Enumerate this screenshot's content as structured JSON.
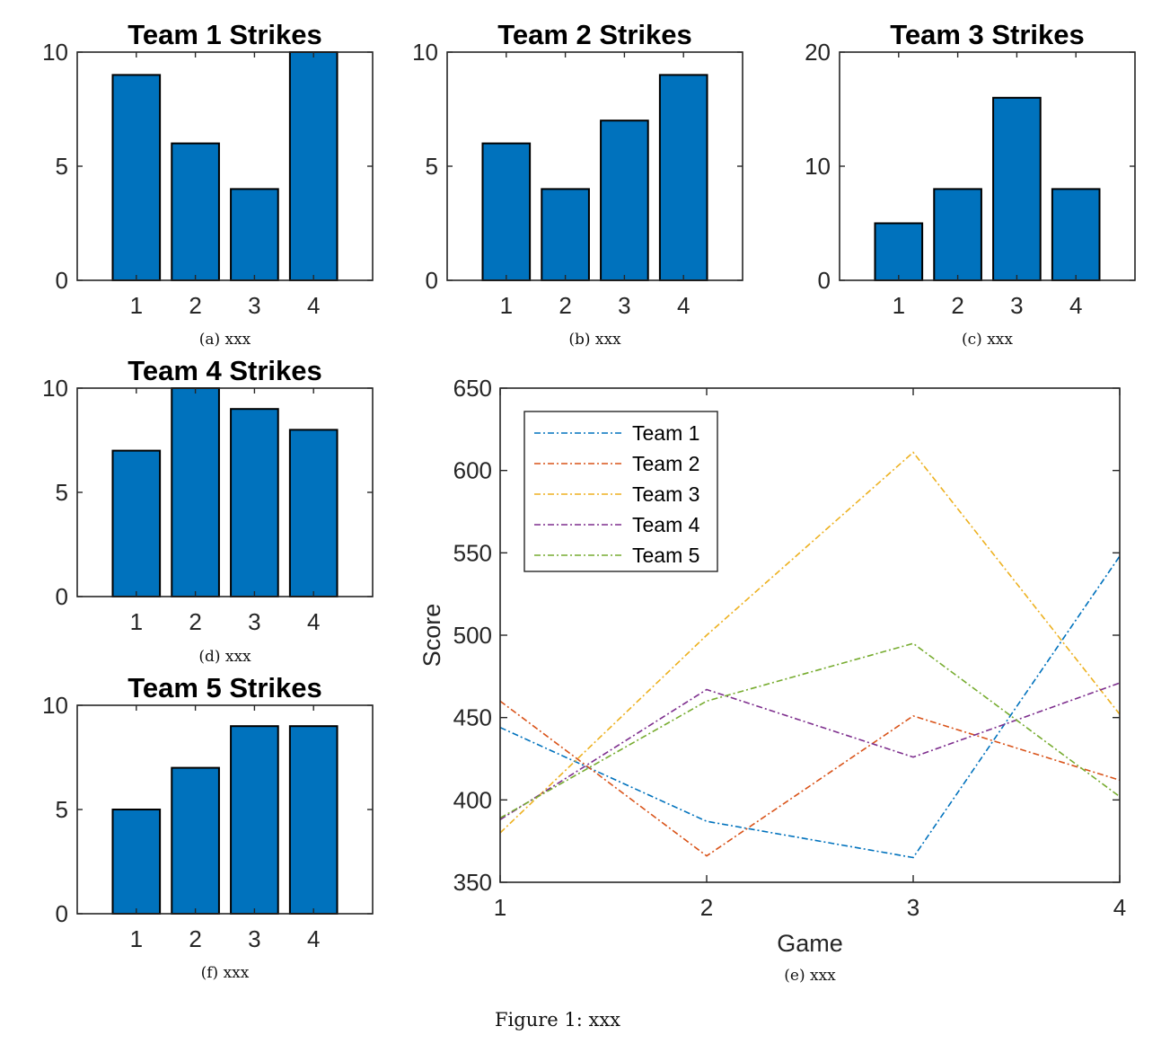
{
  "figure_caption": "Figure 1: xxx",
  "colors": {
    "bar_fill": "#0072BD",
    "bar_edge": "#000000",
    "axes": "#262626"
  },
  "chart_data": [
    {
      "id": "a",
      "type": "bar",
      "title": "Team 1 Strikes",
      "caption": "(a) xxx",
      "categories": [
        "1",
        "2",
        "3",
        "4"
      ],
      "values": [
        9,
        6,
        4,
        10
      ],
      "ylim": [
        0,
        10
      ],
      "yticks": [
        0,
        5,
        10
      ],
      "grid": false
    },
    {
      "id": "b",
      "type": "bar",
      "title": "Team 2 Strikes",
      "caption": "(b) xxx",
      "categories": [
        "1",
        "2",
        "3",
        "4"
      ],
      "values": [
        6,
        4,
        7,
        9
      ],
      "ylim": [
        0,
        10
      ],
      "yticks": [
        0,
        5,
        10
      ],
      "grid": false
    },
    {
      "id": "c",
      "type": "bar",
      "title": "Team 3 Strikes",
      "caption": "(c) xxx",
      "categories": [
        "1",
        "2",
        "3",
        "4"
      ],
      "values": [
        5,
        8,
        16,
        8
      ],
      "ylim": [
        0,
        20
      ],
      "yticks": [
        0,
        10,
        20
      ],
      "grid": false
    },
    {
      "id": "d",
      "type": "bar",
      "title": "Team 4 Strikes",
      "caption": "(d) xxx",
      "categories": [
        "1",
        "2",
        "3",
        "4"
      ],
      "values": [
        7,
        10,
        9,
        8
      ],
      "ylim": [
        0,
        10
      ],
      "yticks": [
        0,
        5,
        10
      ],
      "grid": false
    },
    {
      "id": "f",
      "type": "bar",
      "title": "Team 5 Strikes",
      "caption": "(f) xxx",
      "categories": [
        "1",
        "2",
        "3",
        "4"
      ],
      "values": [
        5,
        7,
        9,
        9
      ],
      "ylim": [
        0,
        10
      ],
      "yticks": [
        0,
        5,
        10
      ],
      "grid": false
    },
    {
      "id": "e",
      "type": "line",
      "title": "",
      "caption": "(e) xxx",
      "xlabel": "Game",
      "ylabel": "Score",
      "x": [
        1,
        2,
        3,
        4
      ],
      "xlim": [
        1,
        4
      ],
      "xticks": [
        1,
        2,
        3,
        4
      ],
      "ylim": [
        350,
        650
      ],
      "yticks": [
        350,
        400,
        450,
        500,
        550,
        600,
        650
      ],
      "grid": false,
      "line_style": "dash-dot",
      "legend_position": "top-left",
      "series": [
        {
          "name": "Team 1",
          "values": [
            444,
            387,
            365,
            548
          ],
          "color": "#0072BD"
        },
        {
          "name": "Team 2",
          "values": [
            460,
            366,
            451,
            412
          ],
          "color": "#D95319"
        },
        {
          "name": "Team 3",
          "values": [
            380,
            500,
            611,
            452
          ],
          "color": "#EDB120"
        },
        {
          "name": "Team 4",
          "values": [
            388,
            467,
            426,
            471
          ],
          "color": "#7E2F8E"
        },
        {
          "name": "Team 5",
          "values": [
            389,
            460,
            495,
            402
          ],
          "color": "#77AC30"
        }
      ]
    }
  ]
}
